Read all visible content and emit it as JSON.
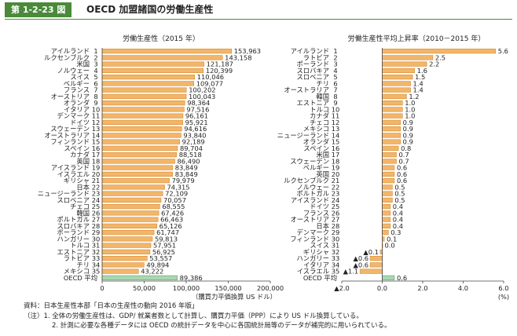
{
  "header": {
    "figure_number": "第 1-2-23 図",
    "title": "OECD 加盟諸国の労働生産性"
  },
  "chart_data": [
    {
      "type": "bar",
      "orientation": "horizontal",
      "title": "労働生産性（2015 年）",
      "xlabel": "（購買力平価換算 US ドル）",
      "xlim": [
        0,
        200000
      ],
      "xticks": [
        0,
        50000,
        100000,
        150000,
        200000
      ],
      "xtick_labels": [
        "0",
        "50,000",
        "100,000",
        "150,000",
        "200,000"
      ],
      "colors": {
        "bar": "#f2b66a",
        "bar_stroke": "#d98a2e",
        "oecd": "#a8d8b0",
        "oecd_stroke": "#5aa56a"
      },
      "rows": [
        {
          "rank": "1",
          "country": "アイルランド",
          "value": 153963,
          "label": "153,963"
        },
        {
          "rank": "2",
          "country": "ルクセンブルク",
          "value": 143158,
          "label": "143,158"
        },
        {
          "rank": "3",
          "country": "米国",
          "value": 121187,
          "label": "121,187"
        },
        {
          "rank": "4",
          "country": "ノルウェー",
          "value": 120399,
          "label": "120,399"
        },
        {
          "rank": "5",
          "country": "スイス",
          "value": 110046,
          "label": "110,046"
        },
        {
          "rank": "6",
          "country": "ベルギー",
          "value": 109077,
          "label": "109,077"
        },
        {
          "rank": "7",
          "country": "フランス",
          "value": 100202,
          "label": "100,202"
        },
        {
          "rank": "8",
          "country": "オーストリア",
          "value": 100043,
          "label": "100,043"
        },
        {
          "rank": "9",
          "country": "オランダ",
          "value": 98364,
          "label": "98,364"
        },
        {
          "rank": "10",
          "country": "イタリア",
          "value": 97516,
          "label": "97,516"
        },
        {
          "rank": "11",
          "country": "デンマーク",
          "value": 96161,
          "label": "96,161"
        },
        {
          "rank": "12",
          "country": "ドイツ",
          "value": 95921,
          "label": "95,921"
        },
        {
          "rank": "13",
          "country": "スウェーデン",
          "value": 94616,
          "label": "94,616"
        },
        {
          "rank": "14",
          "country": "オーストラリア",
          "value": 93840,
          "label": "93,840"
        },
        {
          "rank": "15",
          "country": "フィンランド",
          "value": 92189,
          "label": "92,189"
        },
        {
          "rank": "16",
          "country": "スペイン",
          "value": 89704,
          "label": "89,704"
        },
        {
          "rank": "17",
          "country": "カナダ",
          "value": 88518,
          "label": "88,518"
        },
        {
          "rank": "18",
          "country": "英国",
          "value": 86490,
          "label": "86,490"
        },
        {
          "rank": "19",
          "country": "アイスランド",
          "value": 83849,
          "label": "83,849"
        },
        {
          "rank": "20",
          "country": "イスラエル",
          "value": 83849,
          "label": "83,849"
        },
        {
          "rank": "21",
          "country": "ギリシャ",
          "value": 79979,
          "label": "79,979"
        },
        {
          "rank": "22",
          "country": "日本",
          "value": 74315,
          "label": "74,315"
        },
        {
          "rank": "23",
          "country": "ニュージーランド",
          "value": 72109,
          "label": "72,109"
        },
        {
          "rank": "24",
          "country": "スロベニア",
          "value": 70057,
          "label": "70,057"
        },
        {
          "rank": "25",
          "country": "チェコ",
          "value": 68555,
          "label": "68,555"
        },
        {
          "rank": "26",
          "country": "韓国",
          "value": 67426,
          "label": "67,426"
        },
        {
          "rank": "27",
          "country": "ポルトガル",
          "value": 66463,
          "label": "66,463"
        },
        {
          "rank": "28",
          "country": "スロバキア",
          "value": 65126,
          "label": "65,126"
        },
        {
          "rank": "29",
          "country": "ポーランド",
          "value": 61747,
          "label": "61,747"
        },
        {
          "rank": "30",
          "country": "ハンガリー",
          "value": 59813,
          "label": "59,813"
        },
        {
          "rank": "31",
          "country": "トルコ",
          "value": 57951,
          "label": "57,951"
        },
        {
          "rank": "32",
          "country": "エストニア",
          "value": 56925,
          "label": "56,925"
        },
        {
          "rank": "33",
          "country": "ラトビア",
          "value": 53557,
          "label": "53,557"
        },
        {
          "rank": "34",
          "country": "チリ",
          "value": 49894,
          "label": "49,894"
        },
        {
          "rank": "35",
          "country": "メキシコ",
          "value": 43222,
          "label": "43,222"
        },
        {
          "rank": "",
          "country": "OECD 平均",
          "value": 89386,
          "label": "89,386",
          "highlight": true
        }
      ]
    },
    {
      "type": "bar",
      "orientation": "horizontal",
      "title": "労働生産性平均上昇率（2010－2015 年）",
      "xlabel": "(%)",
      "xlim": [
        -2.0,
        6.0
      ],
      "xticks": [
        -2,
        0,
        2,
        4,
        6
      ],
      "xtick_labels": [
        "▲2.0",
        "0.0",
        "2.0",
        "4.0",
        "6.0"
      ],
      "colors": {
        "bar": "#f2b66a",
        "bar_stroke": "#d98a2e",
        "oecd": "#a8d8b0",
        "oecd_stroke": "#5aa56a"
      },
      "rows": [
        {
          "rank": "1",
          "country": "アイルランド",
          "value": 5.6,
          "label": "5.6"
        },
        {
          "rank": "2",
          "country": "ラトビア",
          "value": 2.5,
          "label": "2.5"
        },
        {
          "rank": "3",
          "country": "ポーランド",
          "value": 2.2,
          "label": "2.2"
        },
        {
          "rank": "4",
          "country": "スロバキア",
          "value": 1.6,
          "label": "1.6"
        },
        {
          "rank": "5",
          "country": "スロベニア",
          "value": 1.5,
          "label": "1.5"
        },
        {
          "rank": "6",
          "country": "チリ",
          "value": 1.4,
          "label": "1.4"
        },
        {
          "rank": "7",
          "country": "オーストラリア",
          "value": 1.4,
          "label": "1.4"
        },
        {
          "rank": "8",
          "country": "韓国",
          "value": 1.2,
          "label": "1.2"
        },
        {
          "rank": "9",
          "country": "エストニア",
          "value": 1.0,
          "label": "1.0"
        },
        {
          "rank": "10",
          "country": "トルコ",
          "value": 1.0,
          "label": "1.0"
        },
        {
          "rank": "11",
          "country": "カナダ",
          "value": 1.0,
          "label": "1.0"
        },
        {
          "rank": "12",
          "country": "チェコ",
          "value": 0.9,
          "label": "0.9"
        },
        {
          "rank": "13",
          "country": "メキシコ",
          "value": 0.9,
          "label": "0.9"
        },
        {
          "rank": "14",
          "country": "ニュージーランド",
          "value": 0.9,
          "label": "0.9"
        },
        {
          "rank": "15",
          "country": "オランダ",
          "value": 0.9,
          "label": "0.9"
        },
        {
          "rank": "16",
          "country": "スペイン",
          "value": 0.8,
          "label": "0.8"
        },
        {
          "rank": "17",
          "country": "米国",
          "value": 0.7,
          "label": "0.7"
        },
        {
          "rank": "18",
          "country": "スウェーデン",
          "value": 0.7,
          "label": "0.7"
        },
        {
          "rank": "19",
          "country": "ベルギー",
          "value": 0.6,
          "label": "0.6"
        },
        {
          "rank": "20",
          "country": "英国",
          "value": 0.6,
          "label": "0.6"
        },
        {
          "rank": "21",
          "country": "ルクセンブルク",
          "value": 0.6,
          "label": "0.6"
        },
        {
          "rank": "22",
          "country": "ノルウェー",
          "value": 0.5,
          "label": "0.5"
        },
        {
          "rank": "23",
          "country": "ポルトガル",
          "value": 0.5,
          "label": "0.5"
        },
        {
          "rank": "24",
          "country": "アイスランド",
          "value": 0.5,
          "label": "0.5"
        },
        {
          "rank": "25",
          "country": "ドイツ",
          "value": 0.4,
          "label": "0.4"
        },
        {
          "rank": "26",
          "country": "フランス",
          "value": 0.4,
          "label": "0.4"
        },
        {
          "rank": "27",
          "country": "オーストリア",
          "value": 0.4,
          "label": "0.4"
        },
        {
          "rank": "28",
          "country": "日本",
          "value": 0.4,
          "label": "0.4"
        },
        {
          "rank": "29",
          "country": "デンマーク",
          "value": 0.3,
          "label": "0.3"
        },
        {
          "rank": "30",
          "country": "フィンランド",
          "value": 0.1,
          "label": "0.1"
        },
        {
          "rank": "31",
          "country": "スイス",
          "value": 0.0,
          "label": "0.0"
        },
        {
          "rank": "32",
          "country": "ギリシャ",
          "value": -0.1,
          "label": "▲0.1"
        },
        {
          "rank": "33",
          "country": "ハンガリー",
          "value": -0.6,
          "label": "▲0.6"
        },
        {
          "rank": "34",
          "country": "イタリア",
          "value": -0.6,
          "label": "▲0.6"
        },
        {
          "rank": "35",
          "country": "イスラエル",
          "value": -1.1,
          "label": "▲1.1"
        },
        {
          "rank": "",
          "country": "OECD 平均",
          "value": 0.6,
          "label": "0.6",
          "highlight": true
        }
      ]
    }
  ],
  "notes": {
    "source": "資料：日本生産性本部「日本の生産性の動向 2016 年版」",
    "note1": "（注）1. 全体の労働生産性は、GDP/ 就業者数として計算し、購買力平価（PPP）により US ドル換算している。",
    "note2": "2. 計測に必要な各種データには OECD の統計データを中心に各国統計局等のデータが補完的に用いられている。"
  }
}
